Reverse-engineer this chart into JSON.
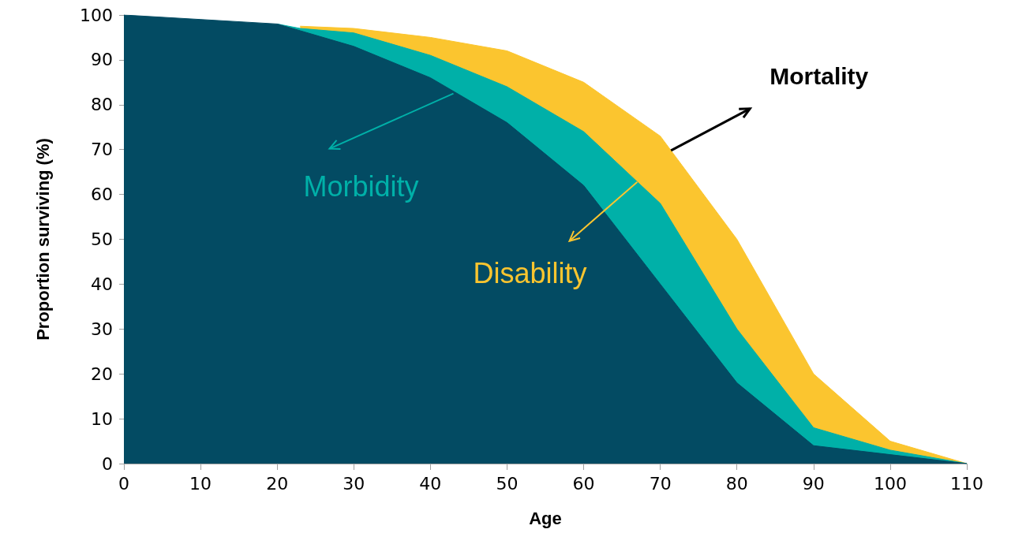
{
  "chart_data": {
    "type": "area",
    "xlabel": "Age",
    "ylabel": "Proportion surviving (%)",
    "x": [
      0,
      10,
      20,
      23,
      30,
      40,
      50,
      60,
      70,
      80,
      90,
      100,
      110
    ],
    "series": [
      {
        "color": "#034b63",
        "values": [
          100,
          99,
          98,
          96.5,
          93,
          86,
          76,
          62,
          40,
          18,
          4,
          2,
          0
        ]
      },
      {
        "color": "#00b0a8",
        "values": [
          null,
          null,
          0,
          0.5,
          3,
          5,
          8,
          12,
          18,
          12,
          4,
          1,
          0
        ]
      },
      {
        "color": "#fbc52f",
        "values": [
          null,
          null,
          null,
          0.5,
          1,
          4,
          8,
          11,
          15,
          20,
          12,
          2,
          0
        ]
      }
    ],
    "stacked": true,
    "xlim": [
      0,
      110
    ],
    "xticks": [
      0,
      10,
      20,
      30,
      40,
      50,
      60,
      70,
      80,
      90,
      100,
      110
    ],
    "ylim": [
      0,
      100
    ],
    "yticks": [
      0,
      10,
      20,
      30,
      40,
      50,
      60,
      70,
      80,
      90,
      100
    ],
    "grid": false,
    "marker": "none",
    "annotations": [
      {
        "text": "Morbidity",
        "x": 43,
        "y": 82.5
      },
      {
        "text": "Disability",
        "x": 67,
        "y": 62.8
      },
      {
        "text": "Mortality",
        "x": 71.4,
        "y": 69.8
      }
    ]
  }
}
